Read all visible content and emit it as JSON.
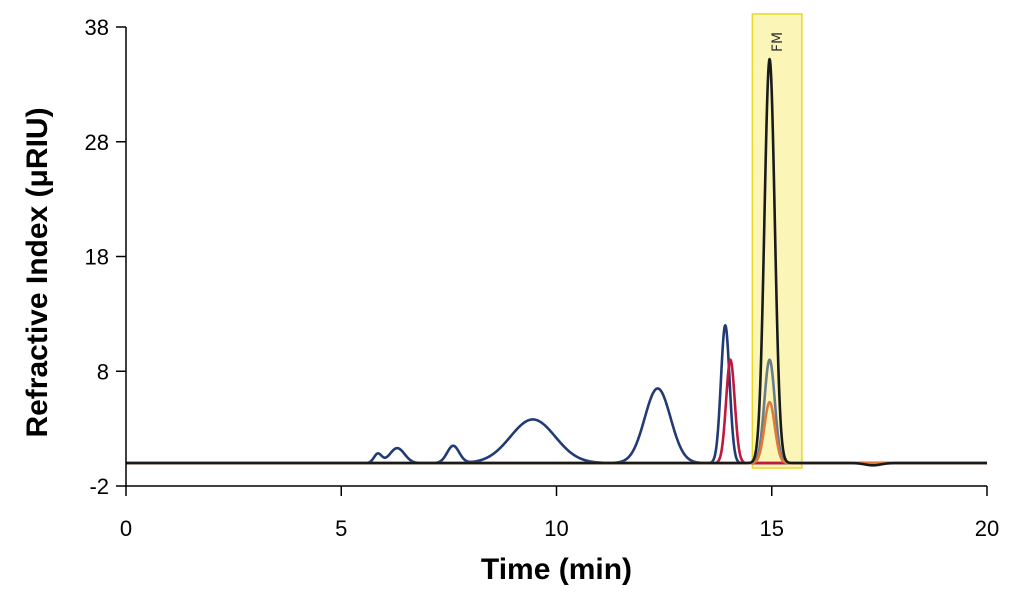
{
  "chart_data": {
    "type": "line",
    "title": "",
    "xlabel": "Time (min)",
    "ylabel": "Refractive Index (μRIU)",
    "xlim": [
      0,
      20
    ],
    "ylim": [
      -2,
      38
    ],
    "xticks": [
      0,
      5,
      10,
      15,
      20
    ],
    "yticks": [
      -2,
      8,
      18,
      28,
      38
    ],
    "grid": false,
    "legend": "none",
    "annotations": [
      {
        "text": "FM",
        "x_range": [
          14.55,
          15.7
        ],
        "fill": "#fbf6b8",
        "stroke": "#e8d823"
      }
    ],
    "series": [
      {
        "name": "navy",
        "color": "#233b74",
        "baseline": 0.0,
        "peaks": [
          [
            5.85,
            0.8,
            0.09
          ],
          [
            6.3,
            1.3,
            0.17
          ],
          [
            7.6,
            1.5,
            0.14
          ],
          [
            9.45,
            3.8,
            0.52
          ],
          [
            12.35,
            6.5,
            0.3
          ],
          [
            13.92,
            12.0,
            0.1
          ]
        ]
      },
      {
        "name": "crimson",
        "color": "#c0193e",
        "baseline": 0.0,
        "peaks": [
          [
            14.04,
            9.0,
            0.1
          ]
        ]
      },
      {
        "name": "gray",
        "color": "#6b7b8e",
        "baseline": 0.0,
        "peaks": [
          [
            14.95,
            9.0,
            0.12
          ]
        ]
      },
      {
        "name": "orange",
        "color": "#e07a3a",
        "baseline": 0.0,
        "peaks": [
          [
            14.95,
            5.3,
            0.12
          ]
        ]
      },
      {
        "name": "black",
        "color": "#1a1a1a",
        "baseline": 0.0,
        "peaks": [
          [
            14.95,
            35.2,
            0.12
          ],
          [
            17.35,
            -0.2,
            0.18
          ]
        ]
      }
    ]
  }
}
